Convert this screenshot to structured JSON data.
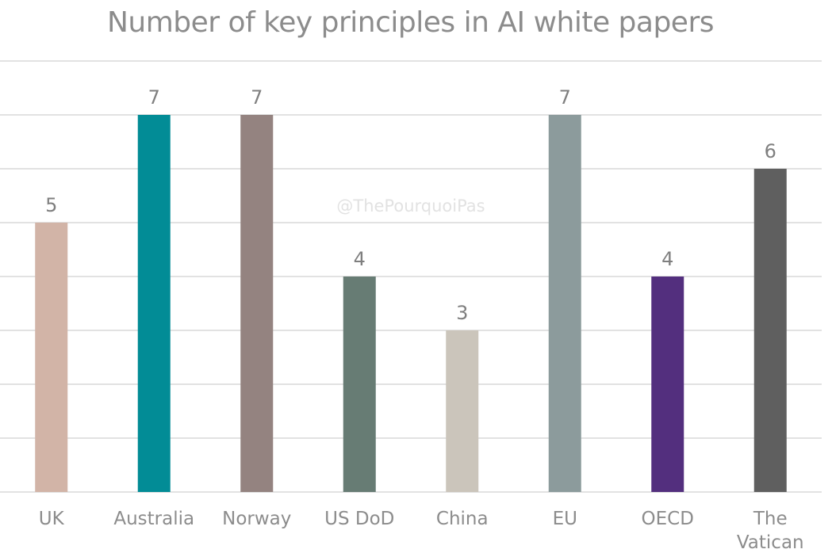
{
  "watermark": "@ThePourquoiPas",
  "chart_data": {
    "type": "bar",
    "title": "Number of key principles in AI white papers",
    "xlabel": "",
    "ylabel": "",
    "ylim": [
      0,
      8
    ],
    "grid": true,
    "categories": [
      "UK",
      "Australia",
      "Norway",
      "US DoD",
      "China",
      "EU",
      "OECD",
      "The Vatican"
    ],
    "values": [
      5,
      7,
      7,
      4,
      3,
      7,
      4,
      6
    ],
    "colors": [
      "#d2b4a7",
      "#028c96",
      "#948380",
      "#677c74",
      "#cbc5bb",
      "#8c9b9c",
      "#532f7e",
      "#5f5f5f"
    ]
  }
}
